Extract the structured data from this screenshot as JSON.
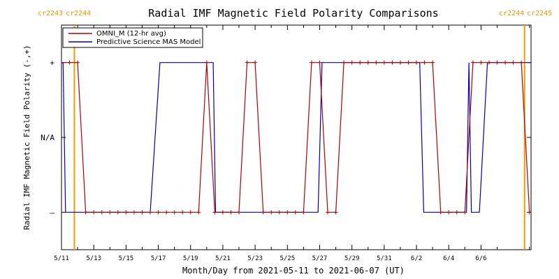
{
  "chart_data": {
    "type": "line",
    "title": "Radial IMF Magnetic Field Polarity Comparisons",
    "xlabel": "Month/Day from 2021-05-11 to 2021-06-07 (UT)",
    "ylabel": "Radial IMF Magnetic Field Polarity (-,+)",
    "x_start_date": "2021-05-11",
    "xlim_days": [
      0,
      29.1
    ],
    "ylim": [
      -1.5,
      1.5
    ],
    "x_tick_days": [
      0,
      2,
      4,
      6,
      8,
      10,
      12,
      14,
      16,
      18,
      20,
      22,
      24,
      26
    ],
    "x_tick_labels": [
      "5/11",
      "5/13",
      "5/15",
      "5/17",
      "5/19",
      "5/21",
      "5/23",
      "5/25",
      "5/27",
      "5/29",
      "5/31",
      "6/2",
      "6/4",
      "6/6"
    ],
    "y_ticks": [
      1,
      0,
      -1
    ],
    "y_tick_labels": [
      "+",
      "N/A",
      "–"
    ],
    "legend": [
      "OMNI_M (12-hr avg)",
      "Predictive Science MAS Model"
    ],
    "legend_position": "top-left",
    "carrington_markers": [
      {
        "day": 0.8,
        "label_left": "cr2243",
        "label_right": "cr2244"
      },
      {
        "day": 28.7,
        "label_left": "cr2244",
        "label_right": "cr2245"
      }
    ],
    "series": [
      {
        "name": "OMNI_M (12-hr avg)",
        "color": "#b00000",
        "markers": true,
        "x": [
          0.0,
          0.5,
          1.0,
          1.5,
          2.0,
          2.5,
          3.0,
          3.5,
          4.0,
          4.5,
          5.0,
          5.5,
          6.0,
          6.5,
          7.0,
          7.5,
          8.0,
          8.5,
          9.0,
          9.5,
          10.0,
          10.5,
          11.0,
          11.5,
          12.0,
          12.5,
          13.0,
          13.5,
          14.0,
          14.5,
          15.0,
          15.5,
          16.0,
          16.5,
          17.0,
          17.5,
          18.0,
          18.5,
          19.0,
          19.5,
          20.0,
          20.5,
          21.0,
          21.5,
          22.0,
          22.5,
          23.0,
          23.5,
          24.0,
          24.5,
          25.0,
          25.5,
          26.0,
          26.5,
          27.0,
          27.5,
          28.0,
          28.5,
          29.0
        ],
        "y": [
          1,
          1,
          1,
          -1,
          -1,
          -1,
          -1,
          -1,
          -1,
          -1,
          -1,
          -1,
          -1,
          -1,
          -1,
          -1,
          -1,
          -1,
          1,
          -1,
          -1,
          -1,
          -1,
          1,
          1,
          -1,
          -1,
          -1,
          -1,
          -1,
          -1,
          1,
          1,
          -1,
          -1,
          1,
          1,
          1,
          1,
          1,
          1,
          1,
          1,
          1,
          1,
          1,
          1,
          -1,
          -1,
          -1,
          -1,
          1,
          1,
          1,
          1,
          1,
          1,
          1,
          -1
        ]
      },
      {
        "name": "Predictive Science MAS Model",
        "color": "#0000b0",
        "markers": false,
        "x": [
          0.0,
          0.1,
          0.25,
          5.5,
          6.1,
          9.4,
          9.55,
          9.85,
          15.9,
          16.15,
          16.45,
          22.2,
          22.45,
          22.75,
          25.1,
          25.25,
          25.4,
          25.9,
          26.4,
          29.1
        ],
        "y": [
          1,
          1,
          -1,
          -1,
          1,
          1,
          -1,
          -1,
          -1,
          1,
          1,
          1,
          -1,
          -1,
          -1,
          1,
          -1,
          -1,
          1,
          1
        ]
      }
    ]
  }
}
